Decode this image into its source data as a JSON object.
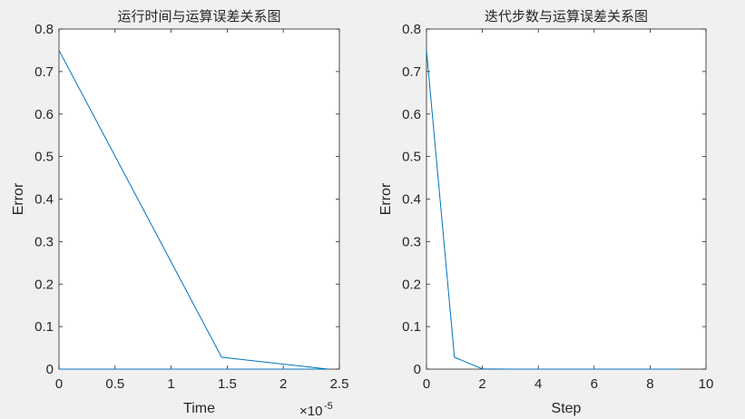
{
  "chart_data": [
    {
      "type": "line",
      "title": "运行时间与运算误差关系图",
      "xlabel": "Time",
      "ylabel": "Error",
      "xlim": [
        0,
        2.5
      ],
      "ylim": [
        0,
        0.8
      ],
      "x_multiplier_base": "×10",
      "x_multiplier_exp": "-5",
      "xticks": [
        0,
        0.5,
        1,
        1.5,
        2,
        2.5
      ],
      "xtick_labels": [
        "0",
        "0.5",
        "1",
        "1.5",
        "2",
        "2.5"
      ],
      "yticks": [
        0,
        0.1,
        0.2,
        0.3,
        0.4,
        0.5,
        0.6,
        0.7,
        0.8
      ],
      "ytick_labels": [
        "0",
        "0.1",
        "0.2",
        "0.3",
        "0.4",
        "0.5",
        "0.6",
        "0.7",
        "0.8"
      ],
      "color": "#0072bd",
      "x": [
        0,
        1.45,
        2.4,
        0
      ],
      "y": [
        0.75,
        0.028,
        0,
        0
      ],
      "grid": false
    },
    {
      "type": "line",
      "title": "迭代步数与运算误差关系图",
      "xlabel": "Step",
      "ylabel": "Error",
      "xlim": [
        0,
        10
      ],
      "ylim": [
        0,
        0.8
      ],
      "xticks": [
        0,
        2,
        4,
        6,
        8,
        10
      ],
      "xtick_labels": [
        "0",
        "2",
        "4",
        "6",
        "8",
        "10"
      ],
      "yticks": [
        0,
        0.1,
        0.2,
        0.3,
        0.4,
        0.5,
        0.6,
        0.7,
        0.8
      ],
      "ytick_labels": [
        "0",
        "0.1",
        "0.2",
        "0.3",
        "0.4",
        "0.5",
        "0.6",
        "0.7",
        "0.8"
      ],
      "color": "#0072bd",
      "x": [
        0,
        1,
        2,
        3,
        4,
        5,
        6,
        7,
        8,
        9
      ],
      "y": [
        0.75,
        0.028,
        0.0005,
        0,
        0,
        0,
        0,
        0,
        0,
        0
      ],
      "grid": false
    }
  ]
}
